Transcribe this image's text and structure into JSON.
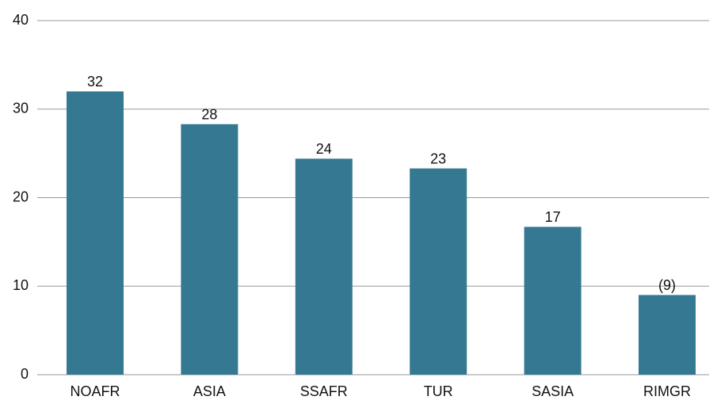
{
  "chart_data": {
    "type": "bar",
    "categories": [
      "NOAFR",
      "ASIA",
      "SSAFR",
      "TUR",
      "SASIA",
      "RIMGR"
    ],
    "values": [
      32,
      28.3,
      24.4,
      23.3,
      16.7,
      9
    ],
    "value_labels": [
      "32",
      "28",
      "24",
      "23",
      "17",
      "(9)"
    ],
    "color": "#347891",
    "ylim": [
      0,
      40
    ],
    "yticks": [
      0,
      10,
      20,
      30,
      40
    ],
    "grid": true
  }
}
